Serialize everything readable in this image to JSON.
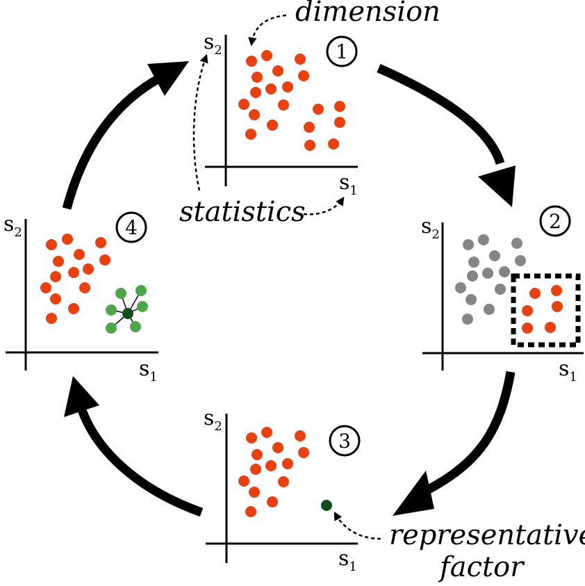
{
  "labels": {
    "dimension": "dimension",
    "statistics": "statistics",
    "representative_line1": "representative",
    "representative_line2": "factor"
  },
  "axis": {
    "s1_base": "s",
    "s1_sub": "1",
    "s2_base": "s",
    "s2_sub": "2"
  },
  "steps": {
    "one": "1",
    "two": "2",
    "three": "3",
    "four": "4"
  },
  "colors": {
    "orange": "#e8400e",
    "gray": "#858585",
    "light_green": "#4ea64a",
    "dark_green": "#0e4f14",
    "black": "#000000"
  }
}
